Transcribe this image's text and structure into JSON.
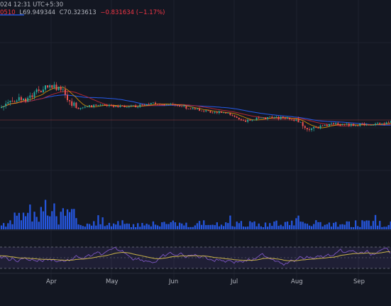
{
  "legend": {
    "time": "024 12:31 UTC+5:30",
    "open_fragment": "0510",
    "low": "L69.949344",
    "close": "C70.323613",
    "change": "−0.831634 (−1.17%)"
  },
  "colors": {
    "background": "#131722",
    "up": "#26a69a",
    "down": "#ef5350",
    "ma_fast": "#f7a600",
    "ma_slow": "#b22833",
    "ma_long": "#2962ff",
    "volume": "#2962ff",
    "rsi": "#7e57c2",
    "rsi_ma": "#c9b24a"
  },
  "months": [
    "Apr",
    "May",
    "Jun",
    "Jul",
    "Aug",
    "Sep"
  ]
}
